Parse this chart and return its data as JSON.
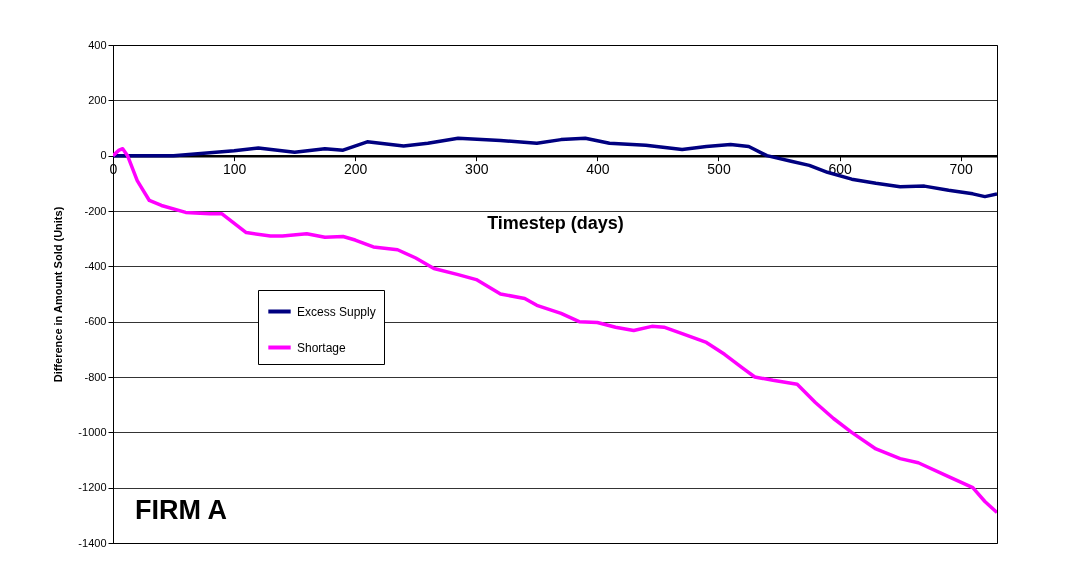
{
  "chart_data": {
    "type": "line",
    "xlabel": "Timestep (days)",
    "ylabel": "Difference in Amount Sold (Units)",
    "xlim": [
      0,
      730
    ],
    "xticks": [
      0,
      100,
      200,
      300,
      400,
      500,
      600,
      700
    ],
    "ylim": [
      -1400,
      400
    ],
    "yticks": [
      -1400,
      -1200,
      -1000,
      -800,
      -600,
      -400,
      -200,
      0,
      200,
      400
    ],
    "grid": "y",
    "legend": "left",
    "marker": "none",
    "line_style": "solid",
    "annotations": [
      "FIRM A"
    ],
    "series": [
      {
        "name": "Excess Supply",
        "color": "#000080",
        "x": [
          0,
          50,
          100,
          120,
          150,
          175,
          190,
          210,
          240,
          260,
          285,
          320,
          350,
          370,
          390,
          410,
          440,
          470,
          490,
          510,
          525,
          540,
          560,
          575,
          590,
          610,
          630,
          650,
          670,
          690,
          710,
          720,
          730
        ],
        "values": [
          0,
          0,
          18,
          28,
          12,
          25,
          20,
          50,
          35,
          45,
          63,
          55,
          45,
          58,
          63,
          45,
          38,
          22,
          33,
          40,
          33,
          0,
          -20,
          -35,
          -60,
          -85,
          -100,
          -112,
          -110,
          -125,
          -138,
          -148,
          -138
        ]
      },
      {
        "name": "Shortage",
        "color": "#ff00ff",
        "x": [
          0,
          5,
          8,
          12,
          20,
          30,
          40,
          60,
          80,
          90,
          110,
          130,
          140,
          160,
          175,
          190,
          200,
          215,
          235,
          250,
          265,
          285,
          300,
          320,
          340,
          350,
          370,
          385,
          400,
          415,
          430,
          445,
          455,
          470,
          490,
          505,
          520,
          530,
          545,
          565,
          580,
          595,
          610,
          630,
          650,
          665,
          690,
          710,
          720,
          730
        ],
        "values": [
          0,
          20,
          25,
          0,
          -90,
          -162,
          -180,
          -205,
          -210,
          -210,
          -278,
          -290,
          -290,
          -282,
          -295,
          -292,
          -305,
          -330,
          -340,
          -370,
          -408,
          -430,
          -448,
          -500,
          -516,
          -541,
          -570,
          -600,
          -603,
          -620,
          -632,
          -617,
          -620,
          -643,
          -675,
          -718,
          -768,
          -800,
          -812,
          -826,
          -892,
          -950,
          -1000,
          -1060,
          -1095,
          -1110,
          -1160,
          -1200,
          -1250,
          -1290
        ]
      }
    ]
  }
}
